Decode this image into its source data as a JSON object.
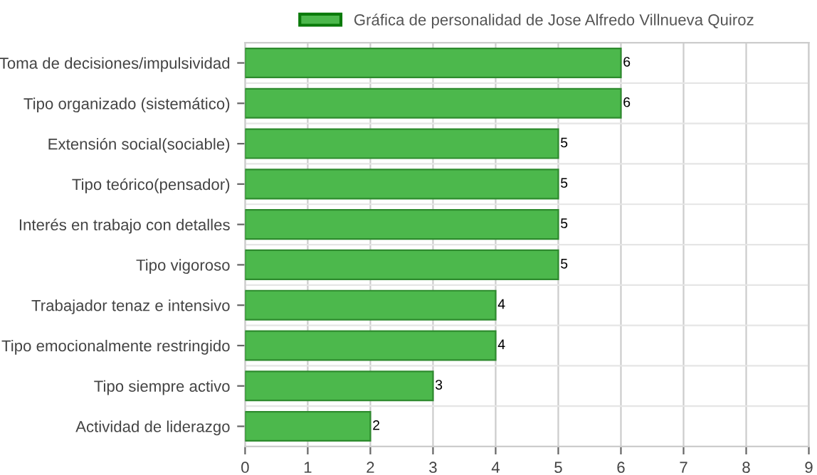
{
  "chart_data": {
    "type": "bar",
    "orientation": "horizontal",
    "categories": [
      "Toma de decisiones/impulsividad",
      "Tipo organizado (sistemático)",
      "Extensión social(sociable)",
      "Tipo teórico(pensador)",
      "Interés en trabajo con detalles",
      "Tipo vigoroso",
      "Trabajador tenaz e intensivo",
      "Tipo emocionalmente restringido",
      "Tipo siempre activo",
      "Actividad de liderazgo"
    ],
    "series": [
      {
        "name": "Gráfica de personalidad de Jose Alfredo Villnueva Quiroz",
        "color": "#4cb84c",
        "values": [
          6,
          6,
          5,
          5,
          5,
          5,
          4,
          4,
          3,
          2
        ]
      }
    ],
    "xlim": [
      0,
      9
    ],
    "xticks": [
      0,
      1,
      2,
      3,
      4,
      5,
      6,
      7,
      8,
      9
    ],
    "grid": true,
    "legend": "top",
    "data_labels": true
  }
}
